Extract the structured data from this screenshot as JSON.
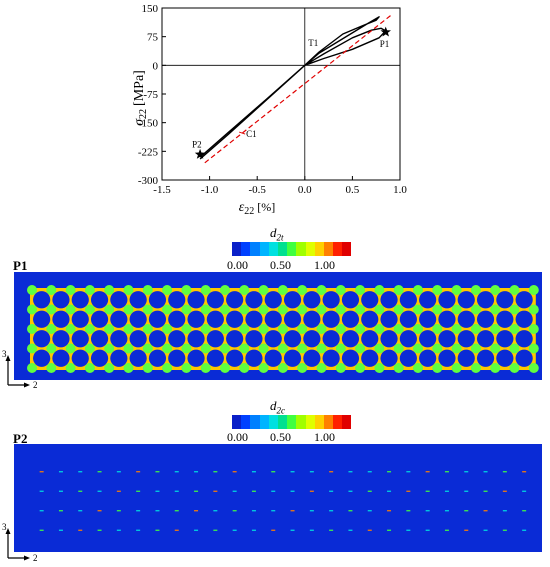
{
  "chart_data": {
    "type": "line",
    "xlabel": "ε22 [%]",
    "xlabel_symbol": "ε",
    "xlabel_sub": "22",
    "xlabel_unit": "[%]",
    "ylabel_symbol": "σ",
    "ylabel_sub": "22",
    "ylabel_unit": "[MPa]",
    "xlim": [
      -1.5,
      1.0
    ],
    "ylim": [
      -300,
      150
    ],
    "x_ticks": [
      "-1.5",
      "-1.0",
      "-0.5",
      "0.0",
      "0.5",
      "1.0"
    ],
    "x_tick_values": [
      -1.5,
      -1.0,
      -0.5,
      0.0,
      0.5,
      1.0
    ],
    "y_ticks": [
      "150",
      "75",
      "0",
      "-75",
      "-150",
      "-225",
      "-300"
    ],
    "y_tick_values": [
      150,
      75,
      0,
      -75,
      -150,
      -225,
      -300
    ],
    "series": [
      {
        "style": "solid-black",
        "points": [
          [
            -1.1,
            -240
          ],
          [
            -0.8,
            -175
          ],
          [
            -0.4,
            -88
          ],
          [
            0.0,
            0.0
          ],
          [
            0.15,
            35
          ],
          [
            0.4,
            82
          ],
          [
            0.6,
            103
          ],
          [
            0.75,
            118
          ],
          [
            0.78,
            127
          ],
          [
            0.65,
            108
          ],
          [
            0.4,
            70
          ],
          [
            0.15,
            32
          ],
          [
            0.0,
            0.0
          ],
          [
            0.2,
            30
          ],
          [
            0.5,
            72
          ],
          [
            0.7,
            92
          ],
          [
            0.8,
            97
          ],
          [
            0.85,
            90
          ],
          [
            0.78,
            72
          ],
          [
            0.5,
            42
          ],
          [
            0.2,
            18
          ],
          [
            0.0,
            0.0
          ],
          [
            -0.4,
            -90
          ],
          [
            -0.8,
            -180
          ],
          [
            -1.1,
            -245
          ]
        ]
      },
      {
        "style": "dashed-red",
        "points": [
          [
            -1.05,
            -255
          ],
          [
            0.9,
            130
          ]
        ]
      }
    ],
    "markers": [
      {
        "label": "P1",
        "x": 0.85,
        "y": 87,
        "symbol": "star"
      },
      {
        "label": "P2",
        "x": -1.1,
        "y": -233,
        "symbol": "star"
      }
    ],
    "annotations": [
      {
        "label": "T1",
        "x": 0.12,
        "y": 25
      },
      {
        "label": "C1",
        "x": -0.7,
        "y": -172
      }
    ]
  },
  "panels": [
    {
      "label": "P1",
      "colorbar_symbol": "d",
      "colorbar_sub": "2t",
      "colorbar_ticks": [
        "0.00",
        "0.50",
        "1.00"
      ],
      "colors": [
        "#0a20c8",
        "#0040ff",
        "#0080ff",
        "#00b4ff",
        "#00e0e0",
        "#00e090",
        "#40ff40",
        "#a0ff00",
        "#e0ff00",
        "#ffd000",
        "#ff8000",
        "#ff2000",
        "#e00000"
      ],
      "field_color": "#0a2bd6",
      "axis_vertical": "3",
      "axis_horizontal": "2"
    },
    {
      "label": "P2",
      "colorbar_symbol": "d",
      "colorbar_sub": "2c",
      "colorbar_ticks": [
        "0.00",
        "0.50",
        "1.00"
      ],
      "colors": [
        "#0a20c8",
        "#0040ff",
        "#0080ff",
        "#00b4ff",
        "#00e0e0",
        "#00e090",
        "#40ff40",
        "#a0ff00",
        "#e0ff00",
        "#ffd000",
        "#ff8000",
        "#ff2000",
        "#e00000"
      ],
      "field_color": "#0a2bd6",
      "axis_vertical": "3",
      "axis_horizontal": "2"
    }
  ]
}
